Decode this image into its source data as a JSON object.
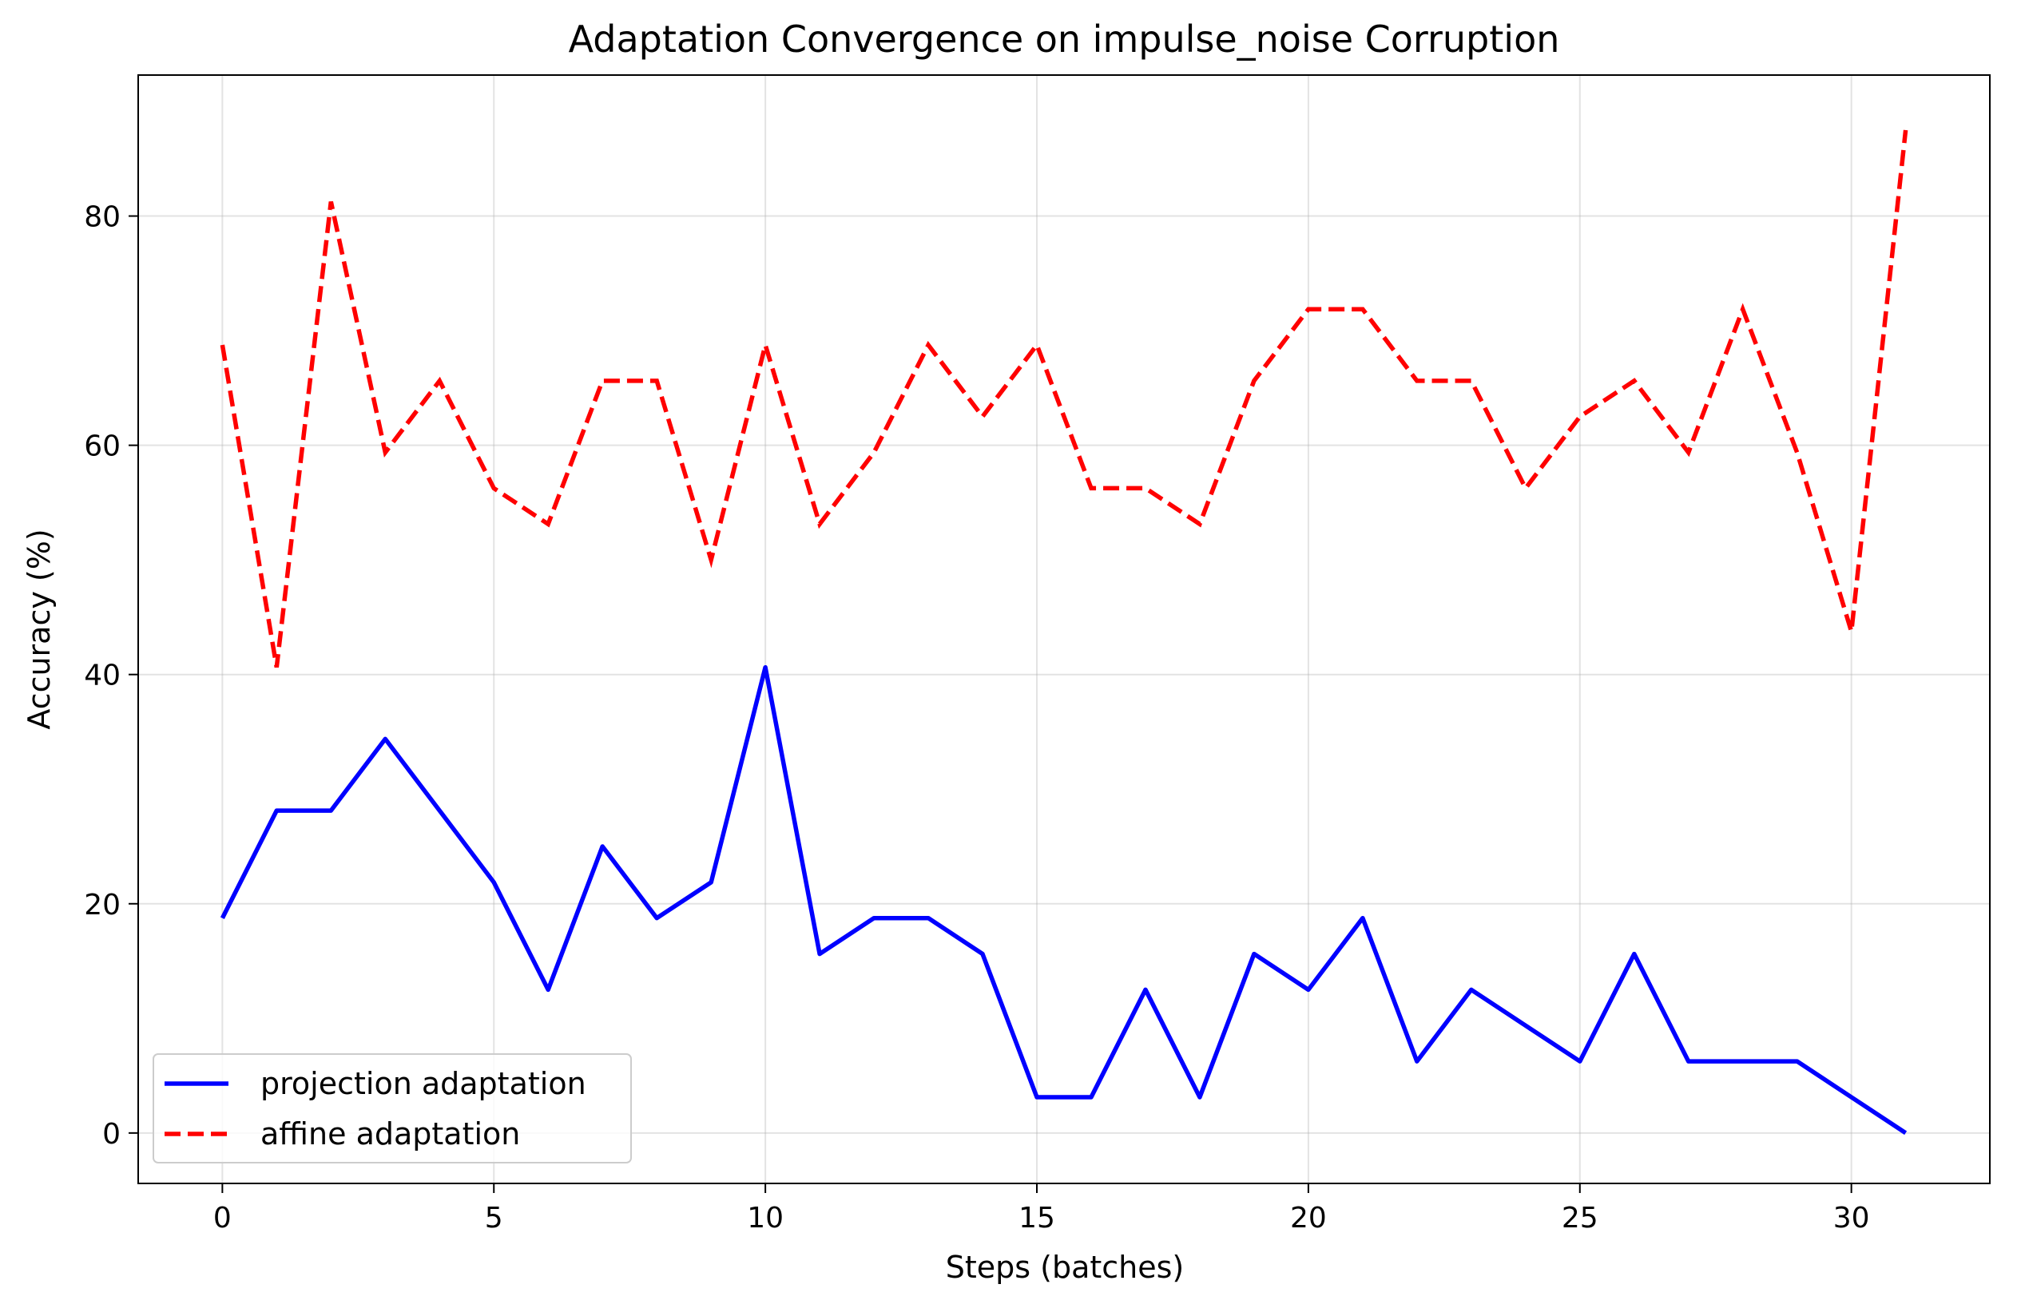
{
  "chart_data": {
    "type": "line",
    "title": "Adaptation Convergence on impulse_noise Corruption",
    "xlabel": "Steps (batches)",
    "ylabel": "Accuracy (%)",
    "xlim": [
      -1.55,
      32.55
    ],
    "ylim": [
      -4.4,
      92.3
    ],
    "xticks": [
      0,
      5,
      10,
      15,
      20,
      25,
      30
    ],
    "yticks": [
      0,
      20,
      40,
      60,
      80
    ],
    "grid": true,
    "legend_position": "lower-left",
    "x": [
      0,
      1,
      2,
      3,
      4,
      5,
      6,
      7,
      8,
      9,
      10,
      11,
      12,
      13,
      14,
      15,
      16,
      17,
      18,
      19,
      20,
      21,
      22,
      23,
      24,
      25,
      26,
      27,
      28,
      29,
      30,
      31
    ],
    "series": [
      {
        "name": "projection adaptation",
        "color": "#0000ff",
        "style": "solid",
        "values": [
          18.75,
          28.125,
          28.125,
          34.375,
          28.125,
          21.875,
          12.5,
          25.0,
          18.75,
          21.875,
          40.625,
          15.625,
          18.75,
          18.75,
          15.625,
          3.125,
          3.125,
          12.5,
          3.125,
          15.625,
          12.5,
          18.75,
          6.25,
          12.5,
          9.375,
          6.25,
          15.625,
          6.25,
          6.25,
          6.25,
          3.125,
          0.0
        ]
      },
      {
        "name": "affine adaptation",
        "color": "#ff0000",
        "style": "dashed",
        "values": [
          68.75,
          40.625,
          81.25,
          59.375,
          65.625,
          56.25,
          53.125,
          65.625,
          65.625,
          50.0,
          68.75,
          53.125,
          59.375,
          68.75,
          62.5,
          68.75,
          56.25,
          56.25,
          53.125,
          65.625,
          71.875,
          71.875,
          65.625,
          65.625,
          56.25,
          62.5,
          65.625,
          59.375,
          71.875,
          59.375,
          43.75,
          87.5
        ]
      }
    ]
  }
}
